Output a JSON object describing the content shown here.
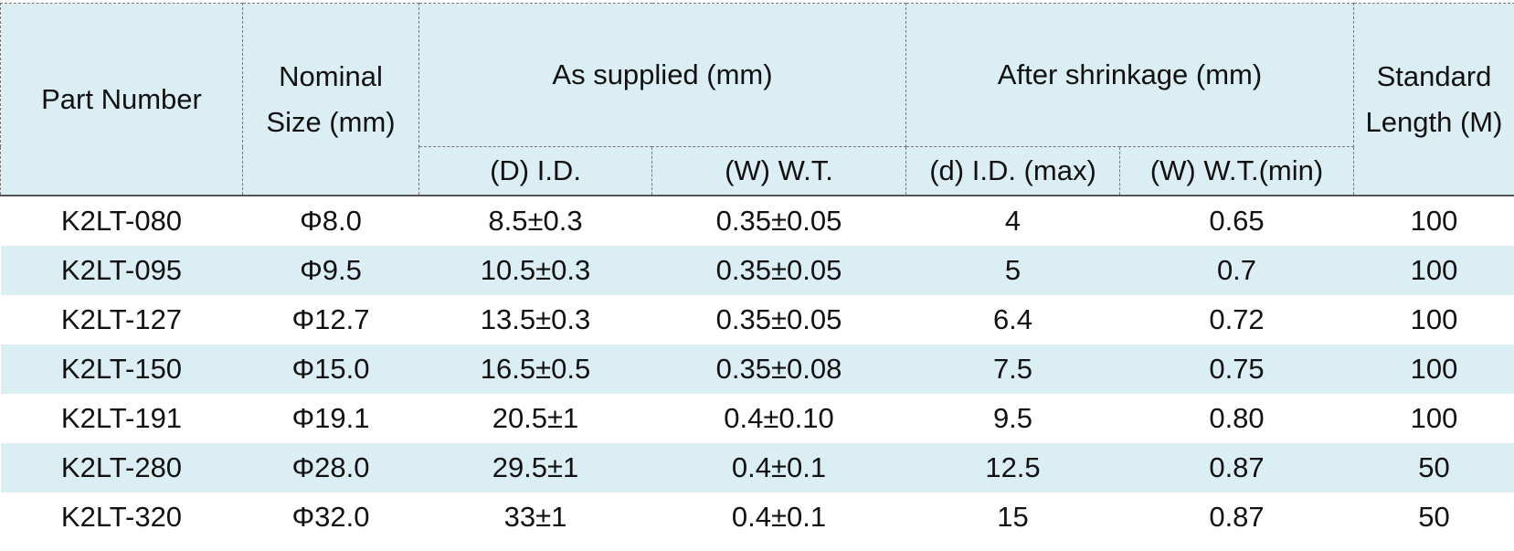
{
  "header": {
    "part_number": "Part Number",
    "nominal_size": "Nominal Size (mm)",
    "as_supplied": "As supplied (mm)",
    "after_shrinkage": "After shrinkage (mm)",
    "standard_length": "Standard Length (M)",
    "sub": [
      "(D) I.D.",
      "(W) W.T.",
      "(d) I.D. (max)",
      "(W) W.T.(min)"
    ]
  },
  "table": {
    "rows": [
      [
        "K2LT-080",
        "Φ8.0",
        "8.5±0.3",
        "0.35±0.05",
        "4",
        "0.65",
        "100"
      ],
      [
        "K2LT-095",
        "Φ9.5",
        "10.5±0.3",
        "0.35±0.05",
        "5",
        "0.7",
        "100"
      ],
      [
        "K2LT-127",
        "Φ12.7",
        "13.5±0.3",
        "0.35±0.05",
        "6.4",
        "0.72",
        "100"
      ],
      [
        "K2LT-150",
        "Φ15.0",
        "16.5±0.5",
        "0.35±0.08",
        "7.5",
        "0.75",
        "100"
      ],
      [
        "K2LT-191",
        "Φ19.1",
        "20.5±1",
        "0.4±0.10",
        "9.5",
        "0.80",
        "100"
      ],
      [
        "K2LT-280",
        "Φ28.0",
        "29.5±1",
        "0.4±0.1",
        "12.5",
        "0.87",
        "50"
      ],
      [
        "K2LT-320",
        "Φ32.0",
        "33±1",
        "0.4±0.1",
        "15",
        "0.87",
        "50"
      ]
    ]
  }
}
